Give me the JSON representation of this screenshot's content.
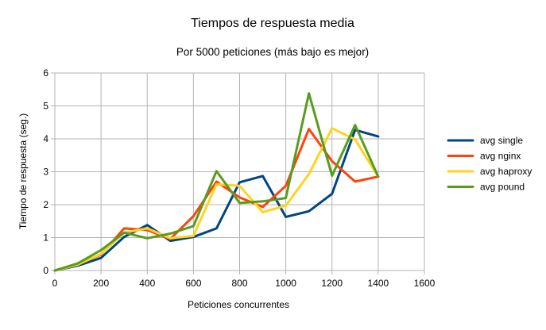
{
  "chart_data": {
    "type": "line",
    "title": "Tiempos de respuesta media",
    "subtitle": "Por 5000 peticiones  (más bajo es mejor)",
    "xlabel": "Peticiones concurrentes",
    "ylabel": "Tiempo de respuesta (seg.)",
    "xlim": [
      0,
      1600
    ],
    "ylim": [
      0,
      6
    ],
    "x_ticks": [
      0,
      200,
      400,
      600,
      800,
      1000,
      1200,
      1400,
      1600
    ],
    "y_ticks": [
      0,
      1,
      2,
      3,
      4,
      5,
      6
    ],
    "grid": true,
    "legend_position": "right",
    "x": [
      0,
      100,
      200,
      300,
      400,
      500,
      600,
      700,
      800,
      900,
      1000,
      1100,
      1200,
      1300,
      1400
    ],
    "series": [
      {
        "name": "avg single",
        "color": "#004586",
        "values": [
          0,
          0.15,
          0.38,
          1.02,
          1.38,
          0.9,
          1.02,
          1.28,
          2.68,
          2.87,
          1.63,
          1.8,
          2.33,
          4.27,
          4.07
        ]
      },
      {
        "name": "avg nginx",
        "color": "#ff420e",
        "values": [
          0,
          0.2,
          0.48,
          1.28,
          1.23,
          0.96,
          1.65,
          2.7,
          2.22,
          1.93,
          2.57,
          4.3,
          3.32,
          2.7,
          2.85
        ]
      },
      {
        "name": "avg haproxy",
        "color": "#ffd320",
        "values": [
          0,
          0.18,
          0.5,
          1.15,
          1.28,
          0.98,
          1.05,
          2.62,
          2.57,
          1.77,
          1.97,
          2.93,
          4.32,
          3.98,
          2.85
        ]
      },
      {
        "name": "avg pound",
        "color": "#579d1c",
        "values": [
          0,
          0.22,
          0.62,
          1.15,
          0.98,
          1.12,
          1.35,
          3.02,
          2.05,
          2.1,
          2.2,
          5.38,
          2.88,
          4.42,
          2.85
        ]
      }
    ]
  }
}
